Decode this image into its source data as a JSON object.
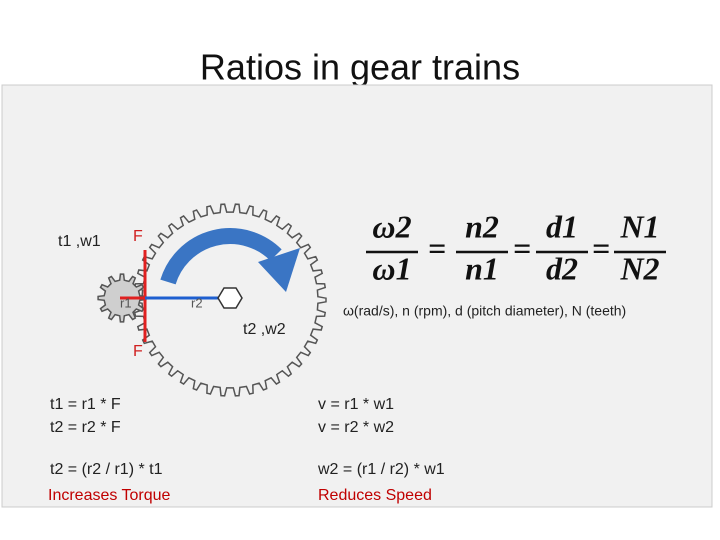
{
  "title": "Ratios in gear trains",
  "diagram": {
    "driver_label": "t1 ,w1",
    "force_top": "F",
    "r1": "r1",
    "r2": "r2",
    "driven_label": "t2 ,w2",
    "force_bottom": "F"
  },
  "equation": {
    "terms": [
      {
        "top": "ω2",
        "bottom": "ω1"
      },
      {
        "top": "n2",
        "bottom": "n1"
      },
      {
        "top": "d1",
        "bottom": "d2"
      },
      {
        "top": "N1",
        "bottom": "N2"
      }
    ],
    "equals": "=",
    "legend": "ω(rad/s), n (rpm), d (pitch diameter), N (teeth)"
  },
  "left_formulas": {
    "lines": [
      "t1 = r1 * F",
      "t2 = r2 * F",
      "t2 = (r2 / r1) * t1"
    ],
    "note": "Increases Torque"
  },
  "right_formulas": {
    "lines": [
      "v = r1 * w1",
      "v = r2 * w2",
      "w2 = (r1 / r2) * w1"
    ],
    "note": "Reduces Speed"
  }
}
